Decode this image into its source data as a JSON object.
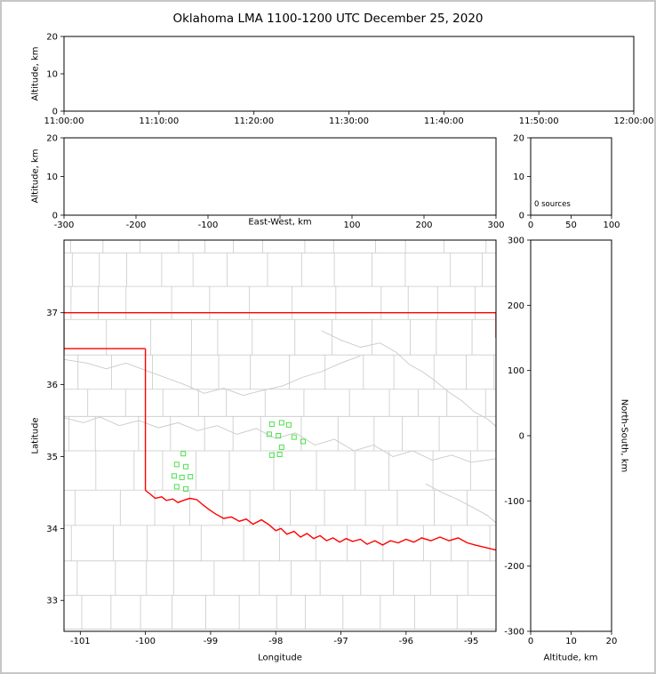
{
  "title": "Oklahoma LMA 1100-1200 UTC December 25, 2020",
  "colors": {
    "state_border": "#ff0000",
    "county_lines": "#c9c9c9",
    "stations": "#4ce04c",
    "axes": "#000000",
    "frame": "#c6c6c6"
  },
  "chart_data": [
    {
      "id": "time_height_panel",
      "type": "scatter",
      "ylabel": "Altitude, km",
      "ylim": [
        0,
        20
      ],
      "y_tick_values": [
        0,
        10,
        20
      ],
      "y_tick_labels": [
        "0",
        "10",
        "20"
      ],
      "x_tick_labels": [
        "11:00:00",
        "11:10:00",
        "11:20:00",
        "11:30:00",
        "11:40:00",
        "11:50:00",
        "12:00:00"
      ],
      "points": []
    },
    {
      "id": "east_west_height_panel",
      "type": "scatter",
      "xlabel": "East-West, km",
      "xlim": [
        -300,
        300
      ],
      "x_tick_values": [
        -300,
        -200,
        -100,
        0,
        100,
        200,
        300
      ],
      "x_tick_labels": [
        "-300",
        "-200",
        "-100",
        "",
        "100",
        "200",
        "300"
      ],
      "ylabel": "Altitude, km",
      "ylim": [
        0,
        20
      ],
      "y_tick_values": [
        0,
        10,
        20
      ],
      "y_tick_labels": [
        "0",
        "10",
        "20"
      ],
      "points": []
    },
    {
      "id": "source_histogram_panel",
      "type": "line",
      "annotation": "0 sources",
      "xlim": [
        0,
        100
      ],
      "x_tick_values": [
        0,
        50,
        100
      ],
      "x_tick_labels": [
        "0",
        "50",
        "100"
      ],
      "ylim": [
        0,
        20
      ],
      "y_tick_values": [
        0,
        10,
        20
      ],
      "y_tick_labels": [
        "0",
        "10",
        "20"
      ],
      "points": []
    },
    {
      "id": "plan_view_map",
      "type": "scatter",
      "xlabel": "Longitude",
      "ylabel": "Latitude",
      "xlim": [
        -101.25,
        -94.62
      ],
      "ylim": [
        32.57,
        38.01
      ],
      "x_tick_values": [
        -101,
        -100,
        -99,
        -98,
        -97,
        -96,
        -95
      ],
      "x_tick_labels": [
        "-101",
        "-100",
        "-99",
        "-98",
        "-97",
        "-96",
        "-95"
      ],
      "y_tick_values": [
        33,
        34,
        35,
        36,
        37
      ],
      "y_tick_labels": [
        "33",
        "34",
        "35",
        "36",
        "37"
      ],
      "stations": [
        [
          -99.42,
          35.04
        ],
        [
          -99.52,
          34.89
        ],
        [
          -99.38,
          34.86
        ],
        [
          -99.56,
          34.73
        ],
        [
          -99.44,
          34.71
        ],
        [
          -99.31,
          34.72
        ],
        [
          -99.52,
          34.58
        ],
        [
          -99.38,
          34.55
        ],
        [
          -98.06,
          35.45
        ],
        [
          -97.91,
          35.47
        ],
        [
          -97.8,
          35.44
        ],
        [
          -98.1,
          35.31
        ],
        [
          -97.96,
          35.29
        ],
        [
          -97.72,
          35.27
        ],
        [
          -97.58,
          35.21
        ],
        [
          -97.91,
          35.13
        ],
        [
          -98.06,
          35.02
        ],
        [
          -97.94,
          35.03
        ]
      ]
    },
    {
      "id": "height_north_south_panel",
      "type": "scatter",
      "xlabel": "Altitude, km",
      "ylabel": "North-South, km",
      "xlim": [
        0,
        20
      ],
      "x_tick_values": [
        0,
        10,
        20
      ],
      "x_tick_labels": [
        "0",
        "10",
        "20"
      ],
      "ylim": [
        -300,
        300
      ],
      "y_tick_values": [
        -300,
        -200,
        -100,
        0,
        100,
        200,
        300
      ],
      "y_tick_labels": [
        "-300",
        "-200",
        "-100",
        "0",
        "100",
        "200",
        "300"
      ],
      "points": []
    }
  ],
  "map_geography": {
    "state_border": {
      "kansas_border": [
        [
          -101.25,
          37.0
        ],
        [
          -94.62,
          37.0
        ]
      ],
      "panhandle_south": [
        [
          -101.25,
          36.5
        ],
        [
          -100.0,
          36.5
        ]
      ],
      "meridian_100": [
        [
          -100.0,
          36.5
        ],
        [
          -100.0,
          34.53
        ]
      ],
      "red_river": [
        [
          -100.0,
          34.53
        ],
        [
          -99.93,
          34.48
        ],
        [
          -99.85,
          34.42
        ],
        [
          -99.75,
          34.44
        ],
        [
          -99.68,
          34.39
        ],
        [
          -99.58,
          34.41
        ],
        [
          -99.5,
          34.36
        ],
        [
          -99.42,
          34.39
        ],
        [
          -99.32,
          34.42
        ],
        [
          -99.21,
          34.4
        ],
        [
          -99.12,
          34.33
        ],
        [
          -99.02,
          34.26
        ],
        [
          -98.92,
          34.2
        ],
        [
          -98.8,
          34.14
        ],
        [
          -98.68,
          34.16
        ],
        [
          -98.56,
          34.1
        ],
        [
          -98.45,
          34.13
        ],
        [
          -98.35,
          34.06
        ],
        [
          -98.22,
          34.12
        ],
        [
          -98.1,
          34.05
        ],
        [
          -98.0,
          33.97
        ],
        [
          -97.92,
          34.0
        ],
        [
          -97.83,
          33.92
        ],
        [
          -97.72,
          33.96
        ],
        [
          -97.62,
          33.88
        ],
        [
          -97.52,
          33.93
        ],
        [
          -97.42,
          33.86
        ],
        [
          -97.32,
          33.9
        ],
        [
          -97.22,
          33.83
        ],
        [
          -97.12,
          33.87
        ],
        [
          -97.02,
          33.81
        ],
        [
          -96.92,
          33.86
        ],
        [
          -96.82,
          33.82
        ],
        [
          -96.7,
          33.85
        ],
        [
          -96.6,
          33.78
        ],
        [
          -96.48,
          33.83
        ],
        [
          -96.36,
          33.77
        ],
        [
          -96.24,
          33.83
        ],
        [
          -96.12,
          33.8
        ],
        [
          -96.0,
          33.85
        ],
        [
          -95.88,
          33.81
        ],
        [
          -95.76,
          33.87
        ],
        [
          -95.62,
          33.83
        ],
        [
          -95.48,
          33.88
        ],
        [
          -95.34,
          33.83
        ],
        [
          -95.2,
          33.87
        ],
        [
          -95.06,
          33.8
        ],
        [
          -94.94,
          33.77
        ],
        [
          -94.8,
          33.74
        ],
        [
          -94.62,
          33.7
        ]
      ],
      "east_border": [
        [
          -94.62,
          37.0
        ],
        [
          -94.62,
          36.65
        ]
      ]
    },
    "rivers": [
      [
        [
          -101.25,
          35.54
        ],
        [
          -100.95,
          35.47
        ],
        [
          -100.7,
          35.55
        ],
        [
          -100.4,
          35.43
        ],
        [
          -100.1,
          35.5
        ],
        [
          -99.8,
          35.4
        ],
        [
          -99.5,
          35.47
        ],
        [
          -99.2,
          35.36
        ],
        [
          -98.9,
          35.43
        ],
        [
          -98.6,
          35.31
        ],
        [
          -98.3,
          35.39
        ],
        [
          -98.0,
          35.25
        ],
        [
          -97.7,
          35.33
        ],
        [
          -97.4,
          35.16
        ],
        [
          -97.1,
          35.24
        ],
        [
          -96.8,
          35.08
        ],
        [
          -96.5,
          35.16
        ],
        [
          -96.2,
          35.0
        ],
        [
          -95.9,
          35.08
        ],
        [
          -95.6,
          34.95
        ],
        [
          -95.3,
          35.02
        ],
        [
          -95.0,
          34.92
        ],
        [
          -94.62,
          34.97
        ]
      ],
      [
        [
          -97.3,
          36.75
        ],
        [
          -97.0,
          36.62
        ],
        [
          -96.7,
          36.52
        ],
        [
          -96.4,
          36.58
        ],
        [
          -96.15,
          36.45
        ],
        [
          -95.95,
          36.28
        ],
        [
          -95.75,
          36.18
        ],
        [
          -95.55,
          36.05
        ],
        [
          -95.35,
          35.9
        ],
        [
          -95.15,
          35.78
        ],
        [
          -94.95,
          35.62
        ],
        [
          -94.75,
          35.52
        ],
        [
          -94.62,
          35.42
        ]
      ],
      [
        [
          -95.7,
          34.62
        ],
        [
          -95.45,
          34.5
        ],
        [
          -95.2,
          34.4
        ],
        [
          -94.95,
          34.28
        ],
        [
          -94.75,
          34.18
        ],
        [
          -94.62,
          34.08
        ]
      ],
      [
        [
          -101.25,
          36.35
        ],
        [
          -100.9,
          36.3
        ],
        [
          -100.6,
          36.22
        ],
        [
          -100.3,
          36.3
        ],
        [
          -100.0,
          36.2
        ],
        [
          -99.7,
          36.1
        ],
        [
          -99.4,
          36.0
        ],
        [
          -99.1,
          35.88
        ],
        [
          -98.8,
          35.95
        ],
        [
          -98.5,
          35.85
        ],
        [
          -98.2,
          35.92
        ],
        [
          -97.9,
          35.98
        ],
        [
          -97.6,
          36.1
        ],
        [
          -97.3,
          36.18
        ],
        [
          -97.0,
          36.3
        ],
        [
          -96.7,
          36.4
        ]
      ]
    ]
  }
}
